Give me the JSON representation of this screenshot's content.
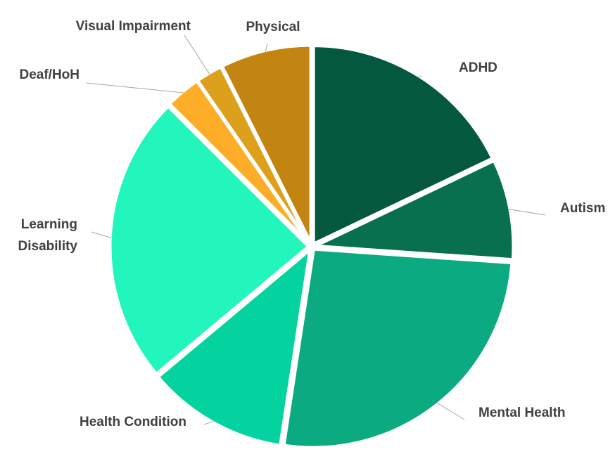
{
  "chart_data": {
    "type": "pie",
    "title": "",
    "start": "top",
    "direction": "clockwise",
    "slices": [
      {
        "label": "ADHD",
        "value": 17.9,
        "color": "#03583f"
      },
      {
        "label": "Autism",
        "value": 8.2,
        "color": "#08704f"
      },
      {
        "label": "Mental Health",
        "value": 26.3,
        "color": "#0baa80"
      },
      {
        "label": "Health Condition",
        "value": 11.5,
        "color": "#04d3a0"
      },
      {
        "label": "Learning Disability",
        "value": 23.6,
        "color": "#22f6bd"
      },
      {
        "label": "Deaf/HoH",
        "value": 2.9,
        "color": "#fdad28"
      },
      {
        "label": "Visual Impairment",
        "value": 2.2,
        "color": "#dda01c"
      },
      {
        "label": "Physical",
        "value": 7.4,
        "color": "#c38512"
      }
    ]
  }
}
